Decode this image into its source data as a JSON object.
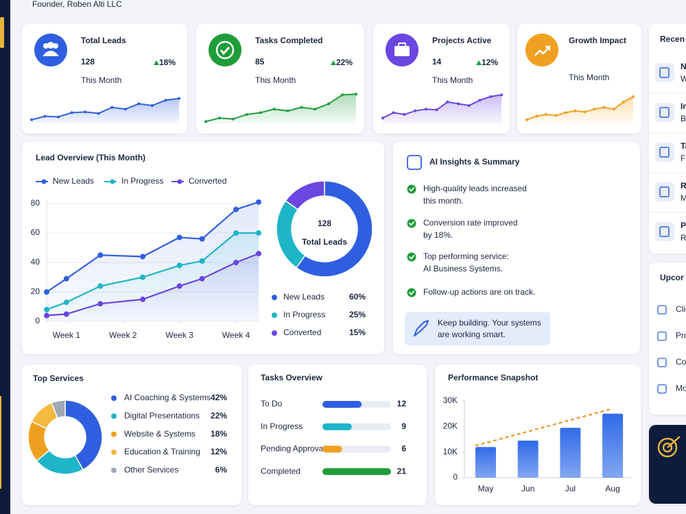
{
  "header": {
    "subtitle": "Founder, Roben Alti LLC"
  },
  "kpis": [
    {
      "title": "Total Leads",
      "value": 128,
      "change": "18%",
      "period": "This Month",
      "color": "#2f5fe0",
      "trend": [
        10,
        20,
        18,
        30,
        32,
        28,
        45,
        40,
        55,
        50,
        65,
        70
      ]
    },
    {
      "title": "Tasks Completed",
      "value": 85,
      "change": "22%",
      "period": "This Month",
      "color": "#1f9d3a",
      "trend": [
        5,
        15,
        12,
        25,
        30,
        40,
        35,
        45,
        40,
        55,
        80,
        82
      ]
    },
    {
      "title": "Projects Active",
      "value": 14,
      "change": "12%",
      "period": "This Month",
      "color": "#6b46e0",
      "trend": [
        15,
        30,
        25,
        35,
        40,
        38,
        60,
        55,
        50,
        65,
        75,
        80
      ]
    },
    {
      "title": "Growth Impact",
      "period": "This Month",
      "color": "#f0a020",
      "trend": [
        10,
        20,
        25,
        22,
        30,
        35,
        32,
        40,
        45,
        40,
        60,
        75
      ]
    }
  ],
  "lead_overview": {
    "title": "Lead Overview (This Month)",
    "x": [
      0.65,
      1,
      1.6,
      2.35,
      3,
      3.4,
      4,
      4.4
    ],
    "xlim": [
      0.65,
      4.4
    ],
    "xticks": [
      {
        "value": 1,
        "label": "Week 1"
      },
      {
        "value": 2,
        "label": "Week 2"
      },
      {
        "value": 3,
        "label": "Week 3"
      },
      {
        "value": 4,
        "label": "Week 4"
      }
    ],
    "ylim": [
      0,
      80
    ],
    "yticks": [
      0,
      20,
      40,
      60,
      80
    ],
    "series": [
      {
        "name": "New Leads",
        "color": "#2f5fe0",
        "values": [
          20,
          29,
          45,
          44,
          57,
          56,
          76,
          81
        ]
      },
      {
        "name": "In Progress",
        "color": "#1fb5c9",
        "values": [
          8,
          13,
          24,
          30,
          38,
          41,
          60,
          60
        ]
      },
      {
        "name": "Converted",
        "color": "#6b46e0",
        "values": [
          4,
          5,
          12,
          15,
          24,
          29,
          40,
          46
        ]
      }
    ],
    "donut": {
      "total": 128,
      "total_label": "Total Leads",
      "values": [
        60,
        25,
        15
      ],
      "value_labels": [
        "60%",
        "25%",
        "15%"
      ]
    }
  },
  "ai_insights": {
    "title": "AI Insights & Summary",
    "items": [
      [
        "High-quality leads increased",
        "this month."
      ],
      [
        "Conversion rate improved",
        "by 18%."
      ],
      [
        "Top performing service:",
        "AI Business Systems."
      ],
      [
        "Follow-up actions are on track."
      ]
    ],
    "callout": [
      "Keep building. Your systems",
      "are working smart."
    ]
  },
  "recent": {
    "title": "Recen",
    "items": [
      {
        "title": "N",
        "sub": "W"
      },
      {
        "title": "In",
        "sub": "B"
      },
      {
        "title": "Ta",
        "sub": "Fe"
      },
      {
        "title": "R",
        "sub": "M"
      },
      {
        "title": "P",
        "sub": "R"
      }
    ]
  },
  "upcoming": {
    "title": "Upcor",
    "items": [
      "Clie",
      "Pro",
      "Cor",
      "Mo"
    ]
  },
  "top_services": {
    "title": "Top Services",
    "categories": [
      "AI Coaching & Systems",
      "Digital Presentations",
      "Website & Systems",
      "Education & Training",
      "Other Services"
    ],
    "values": [
      42,
      22,
      18,
      12,
      6
    ],
    "value_labels": [
      "42%",
      "22%",
      "18%",
      "12%",
      "6%"
    ],
    "colors": [
      "#2f5fe0",
      "#1fb5c9",
      "#f0a020",
      "#f5b840",
      "#a0a8b8"
    ]
  },
  "tasks_overview": {
    "title": "Tasks Overview",
    "categories": [
      "To Do",
      "In Progress",
      "Pending Approval",
      "Completed"
    ],
    "values": [
      12,
      9,
      6,
      21
    ],
    "colors": [
      "#2f5fe0",
      "#1fb5c9",
      "#f0a020",
      "#1f9d3a"
    ]
  },
  "performance": {
    "title": "Performance Snapshot",
    "categories": [
      "May",
      "Jun",
      "Jul",
      "Aug"
    ],
    "values": [
      12000,
      14500,
      19500,
      25000
    ],
    "color": "#2f6ae8",
    "ylim": [
      0,
      30000
    ],
    "yticks": [
      0,
      {
        "value": 10000,
        "label": "10K"
      },
      {
        "value": 20000,
        "label": "20K"
      },
      {
        "value": 30000,
        "label": "30K"
      }
    ],
    "trend": [
      12500,
      27000
    ],
    "trend_color": "#f08a10"
  }
}
